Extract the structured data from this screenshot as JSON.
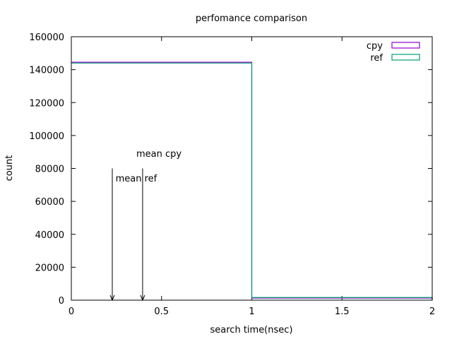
{
  "chart_data": {
    "type": "line",
    "title": "perfomance comparison",
    "xlabel": "search time(nsec)",
    "ylabel": "count",
    "xlim": [
      0,
      2
    ],
    "ylim": [
      0,
      160000
    ],
    "xticks": [
      0,
      0.5,
      1,
      1.5,
      2
    ],
    "xtick_labels": [
      "0",
      "0.5",
      "1",
      "1.5",
      "2"
    ],
    "yticks": [
      0,
      20000,
      40000,
      60000,
      80000,
      100000,
      120000,
      140000,
      160000
    ],
    "ytick_labels": [
      "0",
      "20000",
      "40000",
      "60000",
      "80000",
      "100000",
      "120000",
      "140000",
      "160000"
    ],
    "legend_position": "top-right",
    "series": [
      {
        "name": "cpy",
        "color": "#9400d3",
        "style": "step",
        "x": [
          0,
          1,
          2
        ],
        "y": [
          144500,
          1300,
          1300
        ]
      },
      {
        "name": "ref",
        "color": "#009e73",
        "style": "step",
        "x": [
          0,
          1,
          2
        ],
        "y": [
          144000,
          1600,
          1600
        ]
      }
    ],
    "annotations": [
      {
        "text": "mean cpy",
        "arrow_x": 0.395,
        "arrow_y_from": 80000,
        "arrow_y_to": 0,
        "label_x": 0.36,
        "label_y": 87000
      },
      {
        "text": "mean ref",
        "arrow_x": 0.227,
        "arrow_y_from": 80000,
        "arrow_y_to": 0,
        "label_x": 0.245,
        "label_y": 72000
      }
    ]
  }
}
